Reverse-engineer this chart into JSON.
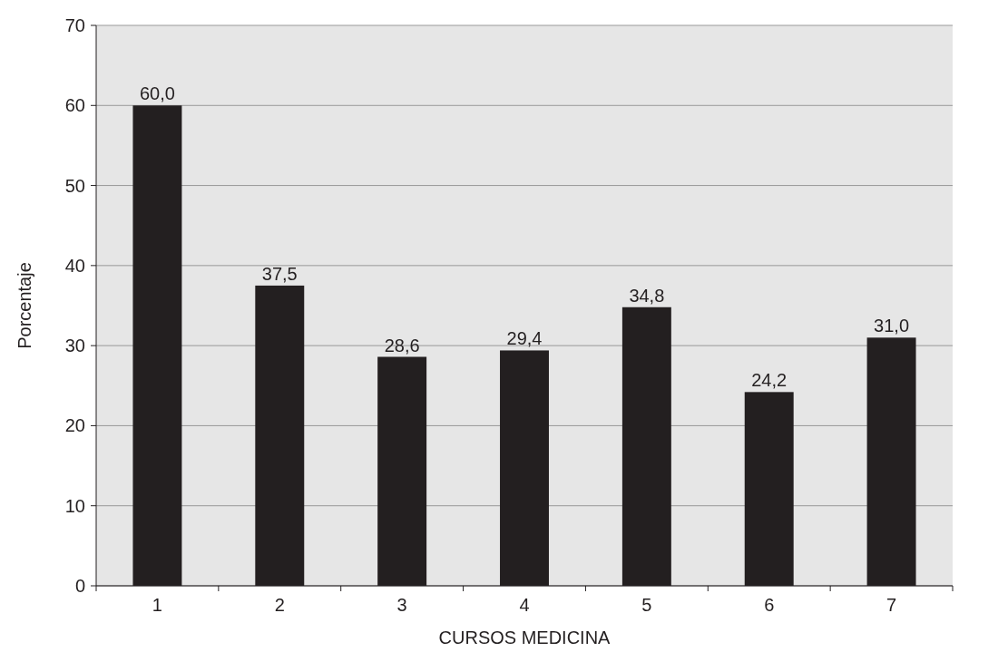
{
  "chart_data": {
    "type": "bar",
    "xlabel": "CURSOS MEDICINA",
    "ylabel": "Porcentaje",
    "categories": [
      "1",
      "2",
      "3",
      "4",
      "5",
      "6",
      "7"
    ],
    "values": [
      60.0,
      37.5,
      28.6,
      29.4,
      34.8,
      24.2,
      31.0
    ],
    "value_labels": [
      "60,0",
      "37,5",
      "28,6",
      "29,4",
      "34,8",
      "24,2",
      "31,0"
    ],
    "color": "#231f20",
    "ylim": [
      0,
      70
    ],
    "yticks": [
      0,
      10,
      20,
      30,
      40,
      50,
      60,
      70
    ],
    "grid": "y"
  }
}
